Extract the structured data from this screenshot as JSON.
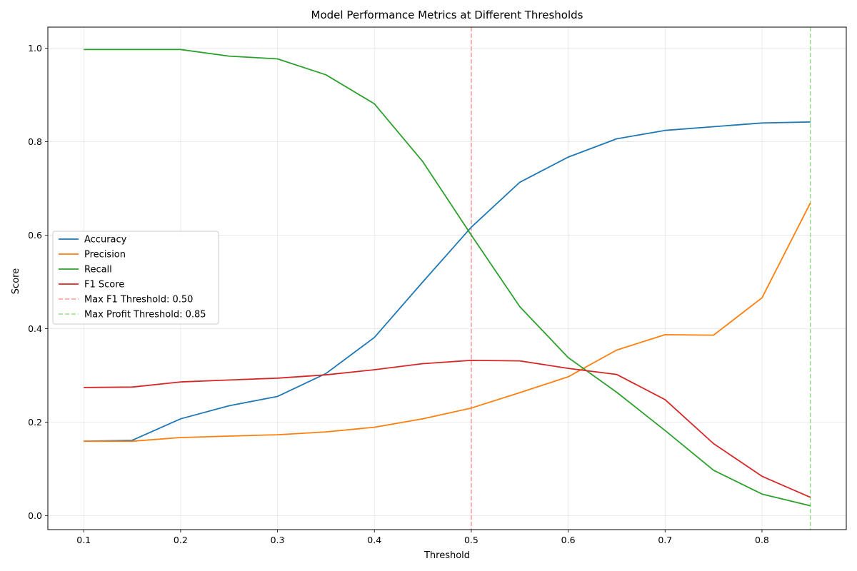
{
  "chart_data": {
    "type": "line",
    "title": "Model Performance Metrics at Different Thresholds",
    "xlabel": "Threshold",
    "ylabel": "Score",
    "xlim": [
      0.063,
      0.887
    ],
    "ylim": [
      -0.03,
      1.045
    ],
    "xticks": [
      0.1,
      0.2,
      0.3,
      0.4,
      0.5,
      0.6,
      0.7,
      0.8
    ],
    "xtick_labels": [
      "0.1",
      "0.2",
      "0.3",
      "0.4",
      "0.5",
      "0.6",
      "0.7",
      "0.8"
    ],
    "yticks": [
      0.0,
      0.2,
      0.4,
      0.6,
      0.8,
      1.0
    ],
    "ytick_labels": [
      "0.0",
      "0.2",
      "0.4",
      "0.6",
      "0.8",
      "1.0"
    ],
    "grid": true,
    "legend_position": "center-left",
    "x": [
      0.1,
      0.15,
      0.2,
      0.25,
      0.3,
      0.35,
      0.4,
      0.45,
      0.5,
      0.55,
      0.6,
      0.65,
      0.7,
      0.75,
      0.8,
      0.85
    ],
    "series": [
      {
        "name": "Accuracy",
        "color": "#1f77b4",
        "values": [
          0.159,
          0.161,
          0.207,
          0.235,
          0.255,
          0.304,
          0.381,
          0.5,
          0.617,
          0.713,
          0.767,
          0.806,
          0.824,
          0.832,
          0.84,
          0.842
        ]
      },
      {
        "name": "Precision",
        "color": "#ff7f0e",
        "values": [
          0.159,
          0.159,
          0.167,
          0.17,
          0.173,
          0.179,
          0.189,
          0.207,
          0.23,
          0.263,
          0.297,
          0.354,
          0.387,
          0.386,
          0.466,
          0.669
        ]
      },
      {
        "name": "Recall",
        "color": "#2ca02c",
        "values": [
          0.997,
          0.997,
          0.997,
          0.983,
          0.977,
          0.943,
          0.881,
          0.757,
          0.6,
          0.447,
          0.338,
          0.264,
          0.182,
          0.097,
          0.046,
          0.021
        ]
      },
      {
        "name": "F1 Score",
        "color": "#d62728",
        "values": [
          0.274,
          0.275,
          0.286,
          0.29,
          0.294,
          0.301,
          0.312,
          0.325,
          0.332,
          0.331,
          0.315,
          0.302,
          0.248,
          0.154,
          0.084,
          0.039
        ]
      }
    ],
    "vlines": [
      {
        "name": "Max F1 Threshold: 0.50",
        "x": 0.5,
        "color": "#ff9896"
      },
      {
        "name": "Max Profit Threshold: 0.85",
        "x": 0.85,
        "color": "#98df8a"
      }
    ]
  }
}
